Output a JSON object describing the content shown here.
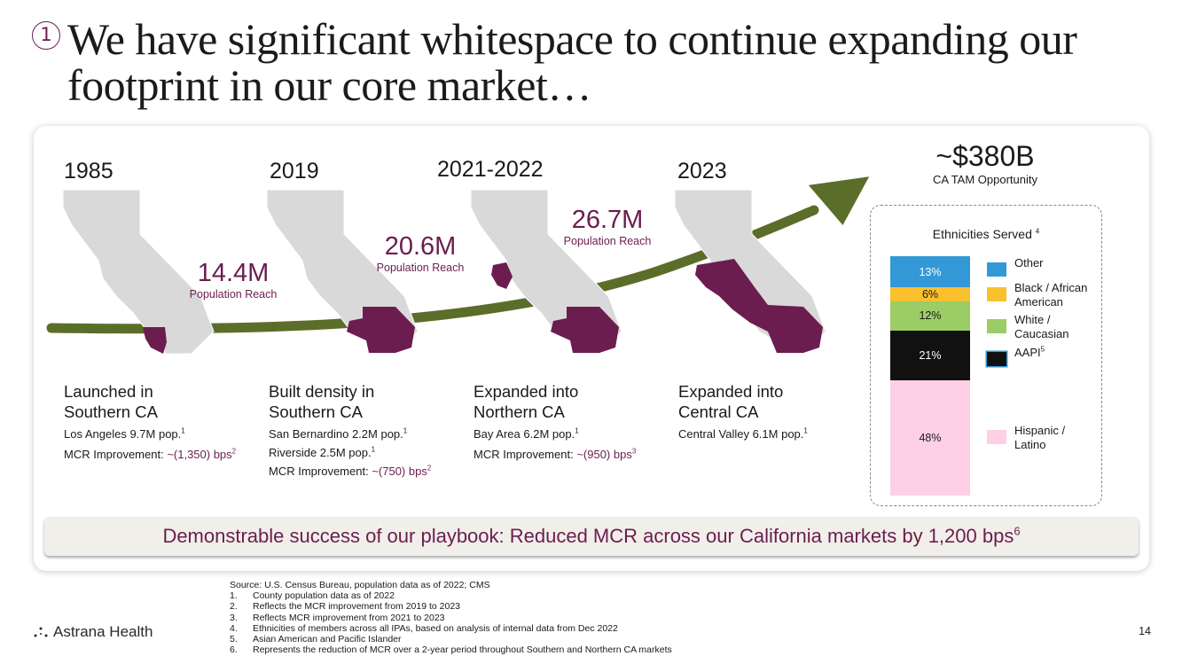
{
  "title": {
    "number": "1",
    "text": "We have significant whitespace to continue expanding our footprint in our core market…"
  },
  "stages": [
    {
      "year": "1985",
      "title_line1": "Launched in",
      "title_line2": "Southern CA",
      "d1_text": "Los Angeles 9.7M pop.",
      "d1_sup": "1",
      "d2_text": "MCR Improvement: ",
      "d2_hl": "~(1,350) bps",
      "d2_sup": "2"
    },
    {
      "year": "2019",
      "title_line1": "Built density in",
      "title_line2": "Southern CA",
      "d1_text": "San Bernardino 2.2M pop.",
      "d1_sup": "1",
      "d2_text": "Riverside 2.5M pop.",
      "d2_sup": "1",
      "d3_text": "MCR Improvement: ",
      "d3_hl": "~(750) bps",
      "d3_sup": "2"
    },
    {
      "year": "2021-2022",
      "title_line1": "Expanded into",
      "title_line2": "Northern CA",
      "d1_text": "Bay Area 6.2M pop.",
      "d1_sup": "1",
      "d2_text": "MCR Improvement: ",
      "d2_hl": "~(950) bps",
      "d2_sup": "3"
    },
    {
      "year": "2023",
      "title_line1": "Expanded into",
      "title_line2": "Central CA",
      "d1_text": "Central Valley 6.1M pop.",
      "d1_sup": "1"
    }
  ],
  "reach": [
    {
      "value": "14.4M",
      "label": "Population Reach"
    },
    {
      "value": "20.6M",
      "label": "Population Reach"
    },
    {
      "value": "26.7M",
      "label": "Population Reach"
    }
  ],
  "tam": {
    "value": "~$380B",
    "label": "CA TAM Opportunity"
  },
  "ethnicities": {
    "title": "Ethnicities Served",
    "title_sup": "4",
    "segments": [
      {
        "label": "48%",
        "value": 48,
        "color": "#fdd0e6",
        "text_color": "#1a1a1a"
      },
      {
        "label": "21%",
        "value": 21,
        "color": "#111111",
        "text_color": "#ffffff"
      },
      {
        "label": "12%",
        "value": 12,
        "color": "#9ccc65",
        "text_color": "#1a1a1a"
      },
      {
        "label": "6%",
        "value": 6,
        "color": "#fbc02d",
        "text_color": "#1a1a1a"
      },
      {
        "label": "13%",
        "value": 13,
        "color": "#3399d6",
        "text_color": "#ffffff"
      }
    ],
    "legend": [
      {
        "line1": "Other",
        "line2": "",
        "color": "#3399d6"
      },
      {
        "line1": "Black / African",
        "line2": "American",
        "color": "#fbc02d"
      },
      {
        "line1": "White /",
        "line2": "Caucasian",
        "color": "#9ccc65"
      },
      {
        "line1": "AAPI",
        "line2": "",
        "sup": "5",
        "color": "#111111"
      },
      {
        "line1": "Hispanic /",
        "line2": "Latino",
        "color": "#fdd0e6"
      }
    ]
  },
  "banner": {
    "text": "Demonstrable success of our playbook: Reduced MCR across our California markets by 1,200 bps",
    "sup": "6"
  },
  "footnotes": {
    "source": "Source: U.S. Census Bureau, population data as of 2022; CMS",
    "items": [
      {
        "n": "1.",
        "text": "County population data as of 2022"
      },
      {
        "n": "2.",
        "text": "Reflects the MCR improvement from 2019 to 2023"
      },
      {
        "n": "3.",
        "text": "Reflects MCR improvement from 2021 to 2023"
      },
      {
        "n": "4.",
        "text": "Ethnicities of members across all IPAs, based on analysis of internal data from Dec 2022"
      },
      {
        "n": "5.",
        "text": "Asian American and Pacific Islander"
      },
      {
        "n": "6.",
        "text": "Represents the reduction of MCR over a 2-year period throughout Southern and Northern CA markets"
      }
    ]
  },
  "logo": {
    "text": "Astrana Health"
  },
  "page_number": "14",
  "colors": {
    "accent": "#6b1d4f",
    "arrow": "#5a6e2a",
    "map": "#d9d9d9"
  }
}
